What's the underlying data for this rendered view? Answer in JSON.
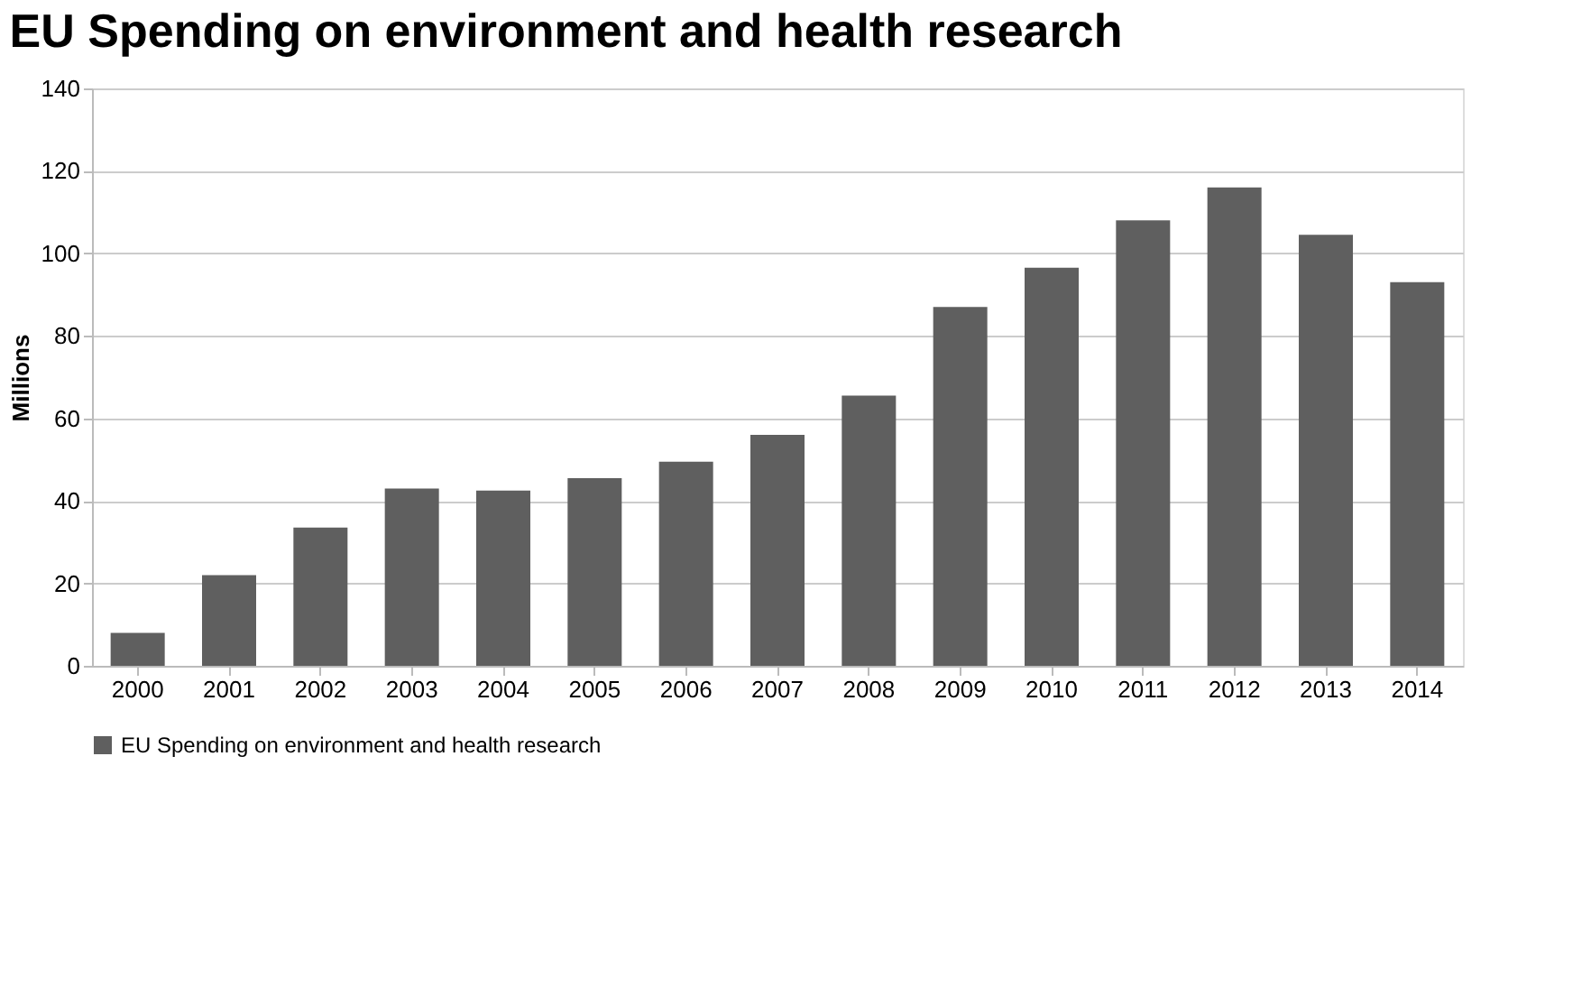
{
  "chart_data": {
    "type": "bar",
    "title": "EU Spending on environment and health research",
    "ylabel": "Millions",
    "categories": [
      "2000",
      "2001",
      "2002",
      "2003",
      "2004",
      "2005",
      "2006",
      "2007",
      "2008",
      "2009",
      "2010",
      "2011",
      "2012",
      "2013",
      "2014"
    ],
    "series": [
      {
        "name": "EU Spending on environment and health research",
        "color": "#5f5f5f",
        "values": [
          8,
          22,
          33.5,
          43,
          42.5,
          45.5,
          49.5,
          56,
          65.5,
          87,
          96.5,
          108,
          116,
          104.5,
          93
        ]
      }
    ],
    "ylim": [
      0,
      140
    ],
    "yticks": [
      0,
      20,
      40,
      60,
      80,
      100,
      120,
      140
    ],
    "grid": "y",
    "legend": "bottom"
  }
}
